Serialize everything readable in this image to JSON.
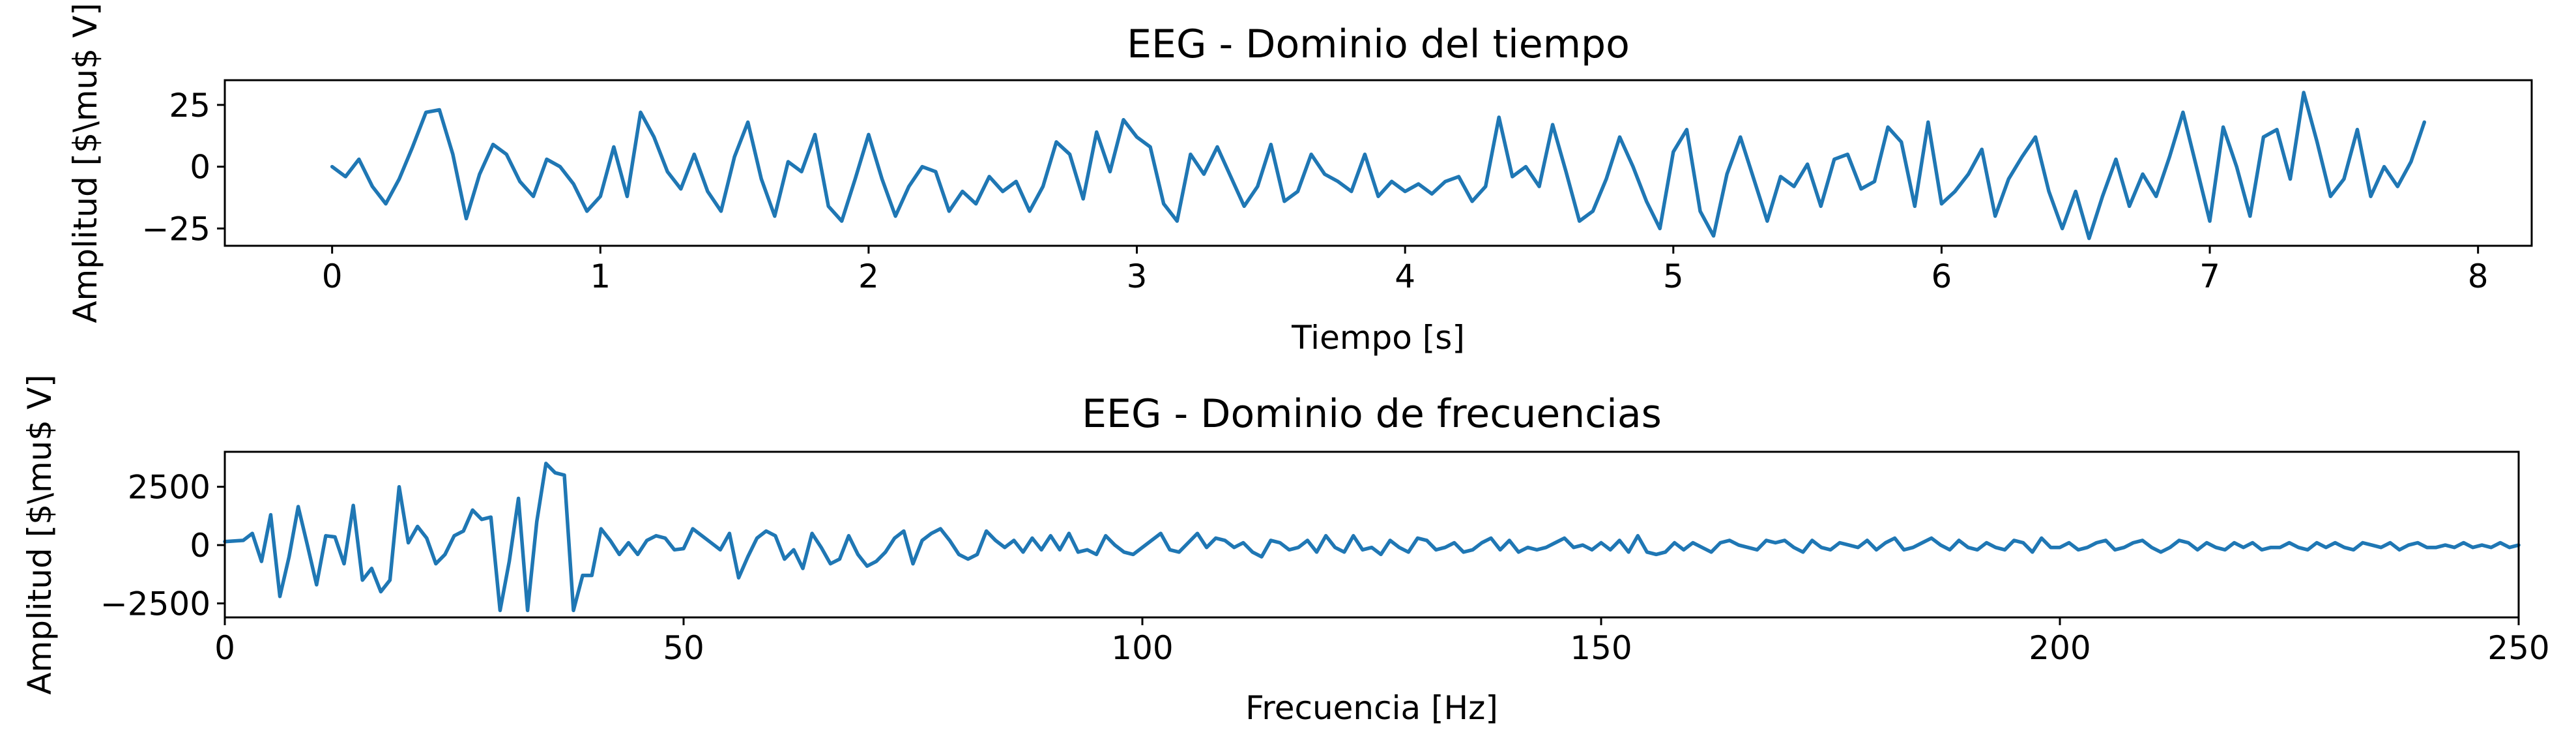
{
  "chart_data": [
    {
      "type": "line",
      "title": "EEG - Dominio del tiempo",
      "xlabel": "Tiempo [s]",
      "ylabel": "Amplitud [$\\mu$ V]",
      "xlim": [
        -0.4,
        8.2
      ],
      "ylim": [
        -32,
        35
      ],
      "xticks": [
        0,
        1,
        2,
        3,
        4,
        5,
        6,
        7,
        8
      ],
      "xtick_labels": [
        "0",
        "1",
        "2",
        "3",
        "4",
        "5",
        "6",
        "7",
        "8"
      ],
      "yticks": [
        -25,
        0,
        25
      ],
      "ytick_labels": [
        "−25",
        "0",
        "25"
      ],
      "grid": false,
      "color": "#1f77b4",
      "series": [
        {
          "x": [
            0.0,
            0.05,
            0.1,
            0.15,
            0.2,
            0.25,
            0.3,
            0.35,
            0.4,
            0.45,
            0.5,
            0.55,
            0.6,
            0.65,
            0.7,
            0.75,
            0.8,
            0.85,
            0.9,
            0.95,
            1.0,
            1.05,
            1.1,
            1.15,
            1.2,
            1.25,
            1.3,
            1.35,
            1.4,
            1.45,
            1.5,
            1.55,
            1.6,
            1.65,
            1.7,
            1.75,
            1.8,
            1.85,
            1.9,
            1.95,
            2.0,
            2.05,
            2.1,
            2.15,
            2.2,
            2.25,
            2.3,
            2.35,
            2.4,
            2.45,
            2.5,
            2.55,
            2.6,
            2.65,
            2.7,
            2.75,
            2.8,
            2.85,
            2.9,
            2.95,
            3.0,
            3.05,
            3.1,
            3.15,
            3.2,
            3.25,
            3.3,
            3.35,
            3.4,
            3.45,
            3.5,
            3.55,
            3.6,
            3.65,
            3.7,
            3.75,
            3.8,
            3.85,
            3.9,
            3.95,
            4.0,
            4.05,
            4.1,
            4.15,
            4.2,
            4.25,
            4.3,
            4.35,
            4.4,
            4.45,
            4.5,
            4.55,
            4.6,
            4.65,
            4.7,
            4.75,
            4.8,
            4.85,
            4.9,
            4.95,
            5.0,
            5.05,
            5.1,
            5.15,
            5.2,
            5.25,
            5.3,
            5.35,
            5.4,
            5.45,
            5.5,
            5.55,
            5.6,
            5.65,
            5.7,
            5.75,
            5.8,
            5.85,
            5.9,
            5.95,
            6.0,
            6.05,
            6.1,
            6.15,
            6.2,
            6.25,
            6.3,
            6.35,
            6.4,
            6.45,
            6.5,
            6.55,
            6.6,
            6.65,
            6.7,
            6.75,
            6.8,
            6.85,
            6.9,
            6.95,
            7.0,
            7.05,
            7.1,
            7.15,
            7.2,
            7.25,
            7.3,
            7.35,
            7.4,
            7.45,
            7.5,
            7.55,
            7.6,
            7.65,
            7.7,
            7.75,
            7.8
          ],
          "y": [
            0,
            -4,
            3,
            -8,
            -15,
            -5,
            8,
            22,
            23,
            5,
            -21,
            -3,
            9,
            5,
            -6,
            -12,
            3,
            0,
            -7,
            -18,
            -12,
            8,
            -12,
            22,
            12,
            -2,
            -9,
            5,
            -10,
            -18,
            4,
            18,
            -5,
            -20,
            2,
            -2,
            13,
            -16,
            -22,
            -5,
            13,
            -5,
            -20,
            -8,
            0,
            -2,
            -18,
            -10,
            -15,
            -4,
            -10,
            -6,
            -18,
            -8,
            10,
            5,
            -13,
            14,
            -2,
            19,
            12,
            8,
            -15,
            -22,
            5,
            -3,
            8,
            -4,
            -16,
            -8,
            9,
            -14,
            -10,
            5,
            -3,
            -6,
            -10,
            5,
            -12,
            -6,
            -10,
            -7,
            -11,
            -6,
            -4,
            -14,
            -8,
            20,
            -4,
            0,
            -8,
            17,
            -2,
            -22,
            -18,
            -5,
            12,
            0,
            -14,
            -25,
            6,
            15,
            -18,
            -28,
            -3,
            12,
            -5,
            -22,
            -4,
            -8,
            1,
            -16,
            3,
            5,
            -9,
            -6,
            16,
            10,
            -16,
            18,
            -15,
            -10,
            -3,
            7,
            -20,
            -5,
            4,
            12,
            -10,
            -25,
            -10,
            -29,
            -12,
            3,
            -16,
            -3,
            -12,
            4,
            22,
            0,
            -22,
            16,
            0,
            -20,
            12,
            15,
            -5,
            30,
            10,
            -12,
            -5,
            15,
            -12,
            0,
            -8,
            2,
            18
          ]
        }
      ]
    },
    {
      "type": "line",
      "title": "EEG - Dominio de frecuencias",
      "xlabel": "Frecuencia [Hz]",
      "ylabel": "Amplitud [$\\mu$ V]",
      "xlim": [
        0,
        250
      ],
      "ylim": [
        -3100,
        4000
      ],
      "xticks": [
        0,
        50,
        100,
        150,
        200,
        250
      ],
      "xtick_labels": [
        "0",
        "50",
        "100",
        "150",
        "200",
        "250"
      ],
      "yticks": [
        -2500,
        0,
        2500
      ],
      "ytick_labels": [
        "−2500",
        "0",
        "2500"
      ],
      "grid": false,
      "color": "#1f77b4",
      "series": [
        {
          "x": [
            0,
            2,
            3,
            4,
            5,
            6,
            7,
            8,
            9,
            10,
            11,
            12,
            13,
            14,
            15,
            16,
            17,
            18,
            19,
            20,
            21,
            22,
            23,
            24,
            25,
            26,
            27,
            28,
            29,
            30,
            31,
            32,
            33,
            34,
            35,
            36,
            37,
            38,
            39,
            40,
            41,
            42,
            43,
            44,
            45,
            46,
            47,
            48,
            49,
            50,
            51,
            52,
            53,
            54,
            55,
            56,
            57,
            58,
            59,
            60,
            61,
            62,
            63,
            64,
            65,
            66,
            67,
            68,
            69,
            70,
            71,
            72,
            73,
            74,
            75,
            76,
            77,
            78,
            79,
            80,
            81,
            82,
            83,
            84,
            85,
            86,
            87,
            88,
            89,
            90,
            91,
            92,
            93,
            94,
            95,
            96,
            97,
            98,
            99,
            100,
            101,
            102,
            103,
            104,
            105,
            106,
            107,
            108,
            109,
            110,
            111,
            112,
            113,
            114,
            115,
            116,
            117,
            118,
            119,
            120,
            121,
            122,
            123,
            124,
            125,
            126,
            127,
            128,
            129,
            130,
            131,
            132,
            133,
            134,
            135,
            136,
            137,
            138,
            139,
            140,
            141,
            142,
            143,
            144,
            145,
            146,
            147,
            148,
            149,
            150,
            151,
            152,
            153,
            154,
            155,
            156,
            157,
            158,
            159,
            160,
            161,
            162,
            163,
            164,
            165,
            166,
            167,
            168,
            169,
            170,
            171,
            172,
            173,
            174,
            175,
            176,
            177,
            178,
            179,
            180,
            181,
            182,
            183,
            184,
            185,
            186,
            187,
            188,
            189,
            190,
            191,
            192,
            193,
            194,
            195,
            196,
            197,
            198,
            199,
            200,
            201,
            202,
            203,
            204,
            205,
            206,
            207,
            208,
            209,
            210,
            211,
            212,
            213,
            214,
            215,
            216,
            217,
            218,
            219,
            220,
            221,
            222,
            223,
            224,
            225,
            226,
            227,
            228,
            229,
            230,
            231,
            232,
            233,
            234,
            235,
            236,
            237,
            238,
            239,
            240,
            241,
            242,
            243,
            244,
            245,
            246,
            247,
            248,
            249,
            250
          ],
          "y": [
            150,
            200,
            500,
            -700,
            1300,
            -2200,
            -500,
            1650,
            0,
            -1700,
            400,
            350,
            -800,
            1700,
            -1500,
            -1000,
            -2000,
            -1500,
            2500,
            100,
            800,
            300,
            -800,
            -400,
            400,
            600,
            1500,
            1100,
            1200,
            -2800,
            -700,
            2000,
            -2800,
            1000,
            3500,
            3100,
            3000,
            -2800,
            -1300,
            -1300,
            700,
            200,
            -400,
            100,
            -400,
            200,
            400,
            300,
            -200,
            -150,
            700,
            400,
            100,
            -200,
            500,
            -1400,
            -500,
            300,
            600,
            400,
            -600,
            -200,
            -1000,
            500,
            -100,
            -800,
            -600,
            400,
            -400,
            -900,
            -700,
            -300,
            300,
            600,
            -800,
            200,
            500,
            700,
            200,
            -400,
            -600,
            -400,
            600,
            200,
            -100,
            200,
            -300,
            300,
            -200,
            400,
            -200,
            500,
            -300,
            -200,
            -400,
            400,
            0,
            -300,
            -400,
            -100,
            200,
            500,
            -200,
            -300,
            100,
            500,
            -100,
            300,
            200,
            -100,
            100,
            -300,
            -500,
            200,
            100,
            -200,
            -100,
            200,
            -300,
            400,
            -100,
            -300,
            400,
            -200,
            -100,
            -400,
            200,
            -100,
            -300,
            300,
            200,
            -200,
            -100,
            100,
            -300,
            -200,
            100,
            300,
            -200,
            200,
            -300,
            -100,
            -200,
            -100,
            100,
            300,
            -100,
            0,
            -200,
            100,
            -200,
            200,
            -300,
            400,
            -300,
            -400,
            -300,
            100,
            -200,
            100,
            -100,
            -300,
            100,
            200,
            0,
            -100,
            -200,
            200,
            100,
            200,
            -100,
            -300,
            200,
            -100,
            -200,
            100,
            0,
            -100,
            200,
            -200,
            100,
            300,
            -200,
            -100,
            100,
            300,
            0,
            -200,
            200,
            -100,
            -200,
            100,
            -100,
            -200,
            200,
            100,
            -300,
            300,
            -100,
            -100,
            100,
            -200,
            -100,
            100,
            200,
            -200,
            -100,
            100,
            200,
            -100,
            -300,
            -100,
            200,
            100,
            -200,
            100,
            -100,
            -200,
            100,
            -100,
            100,
            -200,
            -100,
            -100,
            100,
            -100,
            -200,
            100,
            -100,
            100,
            -100,
            -200,
            100,
            0,
            -100,
            100,
            -200,
            0,
            100,
            -100,
            -100,
            0,
            -100,
            100,
            -100,
            0,
            -100,
            100,
            -100,
            0
          ]
        }
      ]
    }
  ]
}
